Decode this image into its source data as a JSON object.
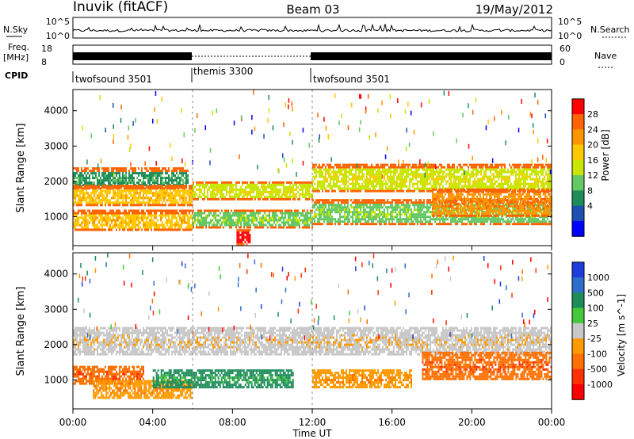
{
  "header": {
    "station": "Inuvik (fitACF)",
    "beam": "Beam 03",
    "date": "19/May/2012"
  },
  "top_panels": {
    "nsky_label": "N.Sky",
    "nsky_ticks": [
      "10^5",
      "10^0"
    ],
    "nsearch_label": "N.Search",
    "nsearch_ticks": [
      "10^5",
      "10^0"
    ],
    "freq_label": "Freq.",
    "freq_unit": "[MHz]",
    "freq_ticks": [
      "18",
      "8"
    ],
    "nave_label": "Nave",
    "nave_ticks": [
      "60",
      "0"
    ],
    "cpid_label": "CPID",
    "cpid_segments": [
      {
        "name": "twofsound 3501",
        "start_h": 0,
        "end_h": 6
      },
      {
        "name": "themis 3300",
        "start_h": 6,
        "end_h": 12
      },
      {
        "name": "twofsound 3501",
        "start_h": 12,
        "end_h": 24
      }
    ]
  },
  "x_axis": {
    "label": "Time UT",
    "ticks": [
      "00:00",
      "04:00",
      "08:00",
      "12:00",
      "16:00",
      "20:00",
      "00:00"
    ]
  },
  "chart_data": [
    {
      "type": "heatmap",
      "name": "power",
      "ylabel": "Slant Range [km]",
      "ylim": [
        180,
        4600
      ],
      "yticks": [
        1000,
        2000,
        3000,
        4000
      ],
      "xlim_hours": [
        0,
        24
      ],
      "colorbar": {
        "label": "Power [dB]",
        "ticks": [
          "28",
          "24",
          "20",
          "16",
          "12",
          "8",
          "4"
        ],
        "colors": [
          "#ff0000",
          "#ff6400",
          "#ff9600",
          "#ffc800",
          "#c8e600",
          "#64c864",
          "#1e8c5a",
          "#1e50b4",
          "#0000ff"
        ]
      },
      "bands": [
        {
          "t0": 0.0,
          "t1": 5.8,
          "r_lo": 1800,
          "r_hi": 2400,
          "level": 2
        },
        {
          "t0": 0.0,
          "t1": 6.0,
          "r_lo": 1300,
          "r_hi": 1900,
          "level": 5
        },
        {
          "t0": 0.0,
          "t1": 6.0,
          "r_lo": 600,
          "r_hi": 1200,
          "level": 5
        },
        {
          "t0": 6.0,
          "t1": 12.0,
          "r_lo": 1500,
          "r_hi": 2000,
          "level": 4
        },
        {
          "t0": 6.0,
          "t1": 12.0,
          "r_lo": 700,
          "r_hi": 1200,
          "level": 3
        },
        {
          "t0": 8.2,
          "t1": 8.9,
          "r_lo": 200,
          "r_hi": 650,
          "level": 8
        },
        {
          "t0": 12.0,
          "t1": 24.0,
          "r_lo": 1700,
          "r_hi": 2500,
          "level": 4
        },
        {
          "t0": 12.0,
          "t1": 24.0,
          "r_lo": 800,
          "r_hi": 1500,
          "level": 3
        },
        {
          "t0": 18.0,
          "t1": 24.0,
          "r_lo": 1000,
          "r_hi": 1800,
          "level": 6
        }
      ]
    },
    {
      "type": "heatmap",
      "name": "velocity",
      "ylabel": "Slant Range [km]",
      "ylim": [
        180,
        4600
      ],
      "yticks": [
        1000,
        2000,
        3000,
        4000
      ],
      "xlim_hours": [
        0,
        24
      ],
      "colorbar": {
        "label": "Velocity [m s^-1]",
        "ticks": [
          "1000",
          "500",
          "100",
          "25",
          "-25",
          "-100",
          "-500",
          "-1000"
        ],
        "colors": [
          "#1e3cdc",
          "#2d6ecd",
          "#1e8c5a",
          "#46c83c",
          "#c8c8c8",
          "#ff9a00",
          "#ff7000",
          "#ff3000",
          "#ff0000"
        ]
      },
      "bands": [
        {
          "t0": 0.0,
          "t1": 24.0,
          "r_lo": 1700,
          "r_hi": 2500,
          "level": 4
        },
        {
          "t0": 0.0,
          "t1": 3.5,
          "r_lo": 900,
          "r_hi": 1400,
          "level": 6
        },
        {
          "t0": 1.0,
          "t1": 6.0,
          "r_lo": 500,
          "r_hi": 1000,
          "level": 5
        },
        {
          "t0": 4.0,
          "t1": 11.0,
          "r_lo": 800,
          "r_hi": 1300,
          "level": 2
        },
        {
          "t0": 12.0,
          "t1": 17.0,
          "r_lo": 800,
          "r_hi": 1300,
          "level": 5
        },
        {
          "t0": 17.5,
          "t1": 24.0,
          "r_lo": 1000,
          "r_hi": 1800,
          "level": 6
        }
      ]
    }
  ]
}
